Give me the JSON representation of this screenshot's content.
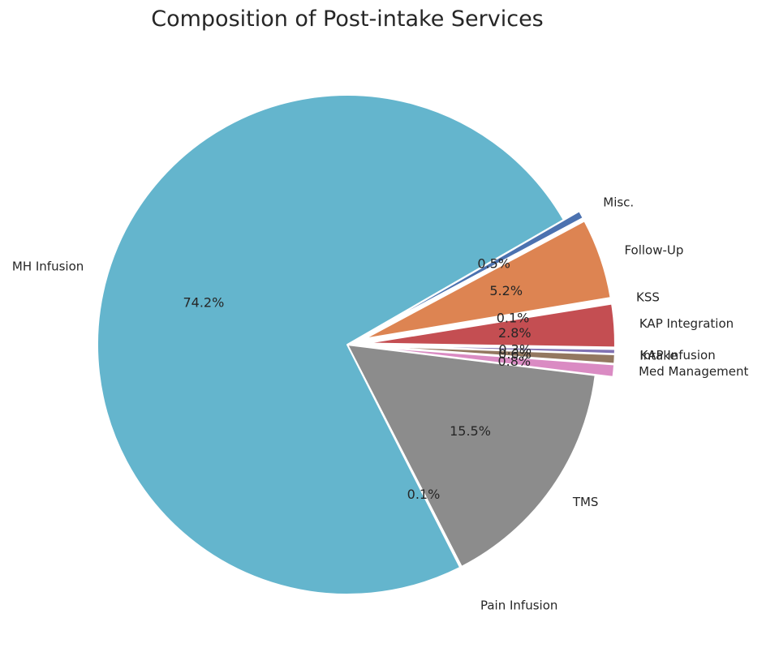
{
  "chart_data": {
    "type": "pie",
    "title": "Composition of Post-intake Services",
    "slices": [
      {
        "label": "Misc.",
        "value": 0.5,
        "pct_label": "0.5%",
        "color": "#4c72b0"
      },
      {
        "label": "Follow-Up",
        "value": 5.2,
        "pct_label": "5.2%",
        "color": "#dd8452"
      },
      {
        "label": "KSS",
        "value": 0.1,
        "pct_label": "0.1%",
        "color": "#55a868"
      },
      {
        "label": "KAP Integration",
        "value": 2.8,
        "pct_label": "2.8%",
        "color": "#c44e52"
      },
      {
        "label": "KAP Infusion",
        "value": 0.3,
        "pct_label": "0.3%",
        "color": "#8172b3"
      },
      {
        "label": "Intake",
        "value": 0.6,
        "pct_label": "0.6%",
        "color": "#937860"
      },
      {
        "label": "Med Management",
        "value": 0.8,
        "pct_label": "0.8%",
        "color": "#da8bc3"
      },
      {
        "label": "TMS",
        "value": 15.5,
        "pct_label": "15.5%",
        "color": "#8c8c8c"
      },
      {
        "label": "Pain Infusion",
        "value": 0.1,
        "pct_label": "0.1%",
        "color": "#ccb974"
      },
      {
        "label": "MH Infusion",
        "value": 74.2,
        "pct_label": "74.2%",
        "color": "#64b5cd"
      }
    ]
  }
}
